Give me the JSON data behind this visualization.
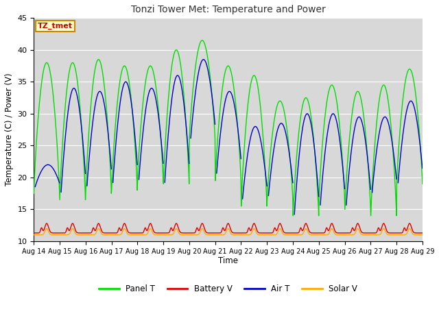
{
  "title": "Tonzi Tower Met: Temperature and Power",
  "xlabel": "Time",
  "ylabel": "Temperature (C) / Power (V)",
  "ylim": [
    10,
    45
  ],
  "x_tick_labels": [
    "Aug 14",
    "Aug 15",
    "Aug 16",
    "Aug 17",
    "Aug 18",
    "Aug 19",
    "Aug 20",
    "Aug 21",
    "Aug 22",
    "Aug 23",
    "Aug 24",
    "Aug 25",
    "Aug 26",
    "Aug 27",
    "Aug 28",
    "Aug 29"
  ],
  "annotation_text": "TZ_tmet",
  "annotation_bg": "#ffffcc",
  "annotation_border": "#cc8800",
  "annotation_text_color": "#cc0000",
  "colors": {
    "panel_t": "#00dd00",
    "battery_v": "#dd0000",
    "air_t": "#0000cc",
    "solar_v": "#ffaa00"
  },
  "legend_labels": [
    "Panel T",
    "Battery V",
    "Air T",
    "Solar V"
  ],
  "fig_bg": "#ffffff",
  "plot_bg": "#d8d8d8"
}
